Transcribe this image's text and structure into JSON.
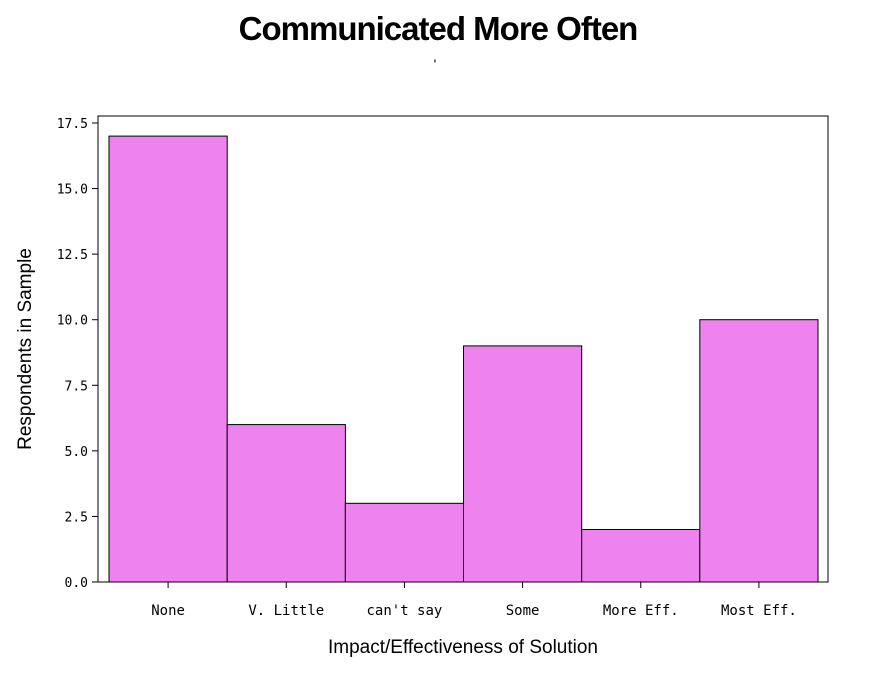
{
  "chart_data": {
    "type": "bar",
    "title": "Communicated More Often",
    "subtitle": "'",
    "xlabel": "Impact/Effectiveness of Solution",
    "ylabel": "Respondents in Sample",
    "categories": [
      "None",
      "V. Little",
      "can't say",
      "Some",
      "More Eff.",
      "Most Eff."
    ],
    "values": [
      17,
      6,
      3,
      9,
      2,
      10
    ],
    "ylim": [
      0,
      17.5
    ],
    "yticks": [
      "0.0",
      "2.5",
      "5.0",
      "7.5",
      "10.0",
      "12.5",
      "15.0",
      "17.5"
    ],
    "bar_color": "#ee82ee",
    "grid": false
  }
}
